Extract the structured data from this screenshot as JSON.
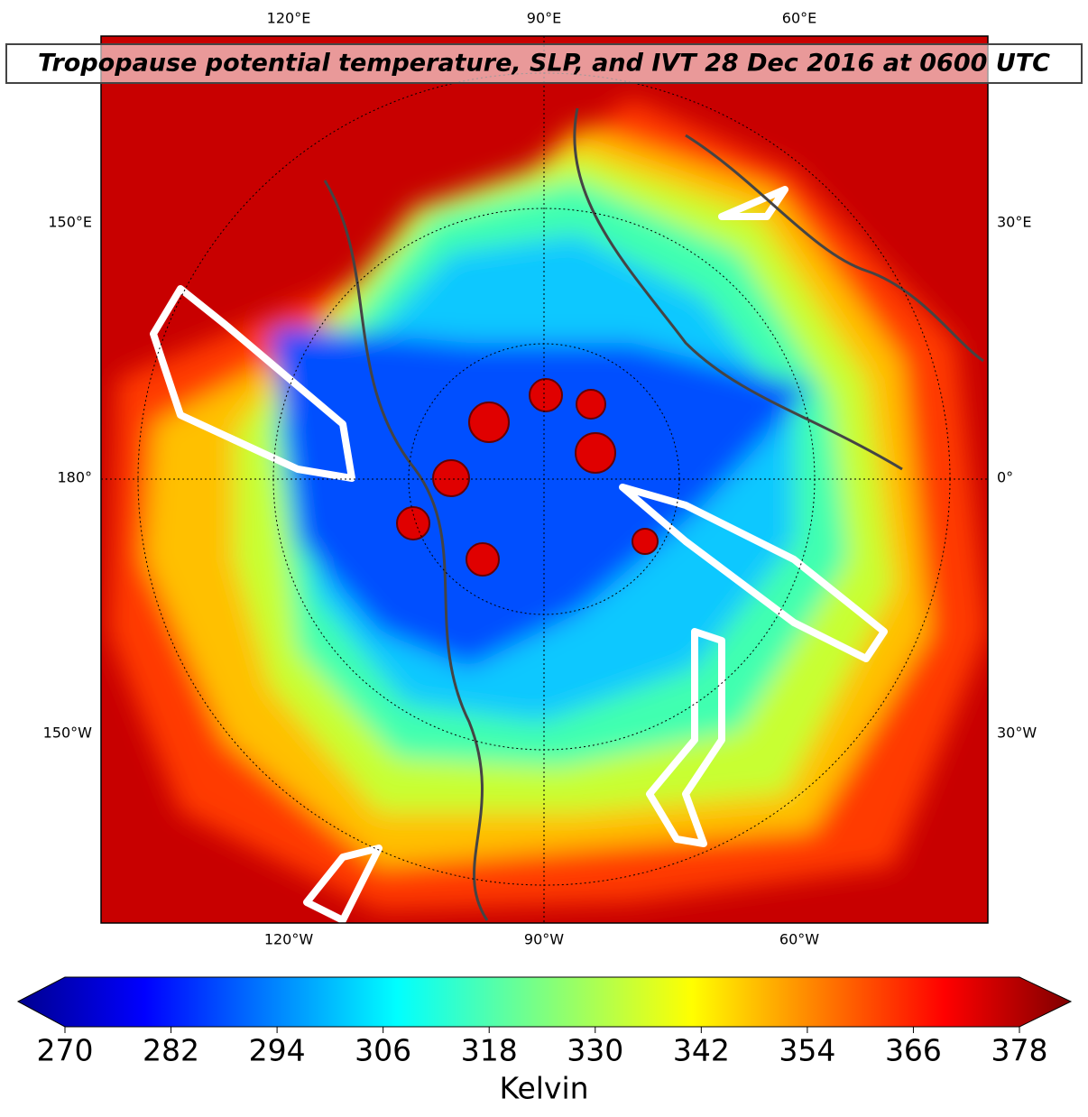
{
  "title": "Tropopause potential temperature, SLP, and IVT 28 Dec 2016 at 0600 UTC",
  "map": {
    "top_labels": [
      "120°E",
      "90°E",
      "60°E"
    ],
    "bottom_labels": [
      "120°W",
      "90°W",
      "60°W"
    ],
    "left_labels": [
      "150°E",
      "180°",
      "150°W"
    ],
    "right_labels": [
      "30°E",
      "0°",
      "30°W"
    ]
  },
  "colorbar": {
    "label": "Kelvin",
    "lim": [
      270,
      378
    ],
    "ticks": [
      270,
      282,
      294,
      306,
      318,
      330,
      342,
      354,
      366,
      378
    ]
  }
}
